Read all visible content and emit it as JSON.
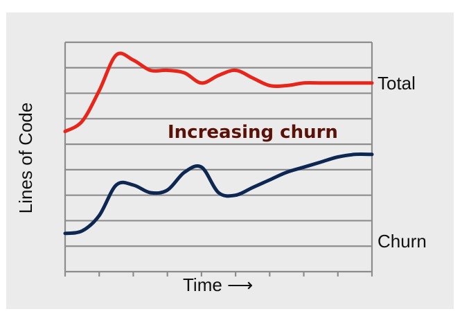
{
  "chart_data": {
    "type": "line",
    "title": "",
    "xlabel": "Time ⟶",
    "ylabel": "Lines of Code",
    "annotation": "Increasing churn",
    "grid": true,
    "xlim": [
      0,
      9
    ],
    "ylim": [
      0,
      9
    ],
    "x": [
      0,
      0.5,
      1,
      1.5,
      2,
      2.5,
      3,
      3.5,
      4,
      4.5,
      5,
      5.5,
      6,
      6.5,
      7,
      7.5,
      8,
      8.5,
      9
    ],
    "series": [
      {
        "name": "Total",
        "color": "#e8251a",
        "values": [
          5.5,
          5.9,
          7.1,
          8.5,
          8.3,
          7.9,
          7.9,
          7.8,
          7.4,
          7.7,
          7.9,
          7.6,
          7.3,
          7.3,
          7.4,
          7.4,
          7.4,
          7.4,
          7.4
        ]
      },
      {
        "name": "Churn",
        "color": "#0d2752",
        "values": [
          1.5,
          1.6,
          2.2,
          3.4,
          3.4,
          3.1,
          3.2,
          3.9,
          4.1,
          3.1,
          3.0,
          3.3,
          3.6,
          3.9,
          4.1,
          4.3,
          4.5,
          4.6,
          4.6
        ]
      }
    ]
  }
}
